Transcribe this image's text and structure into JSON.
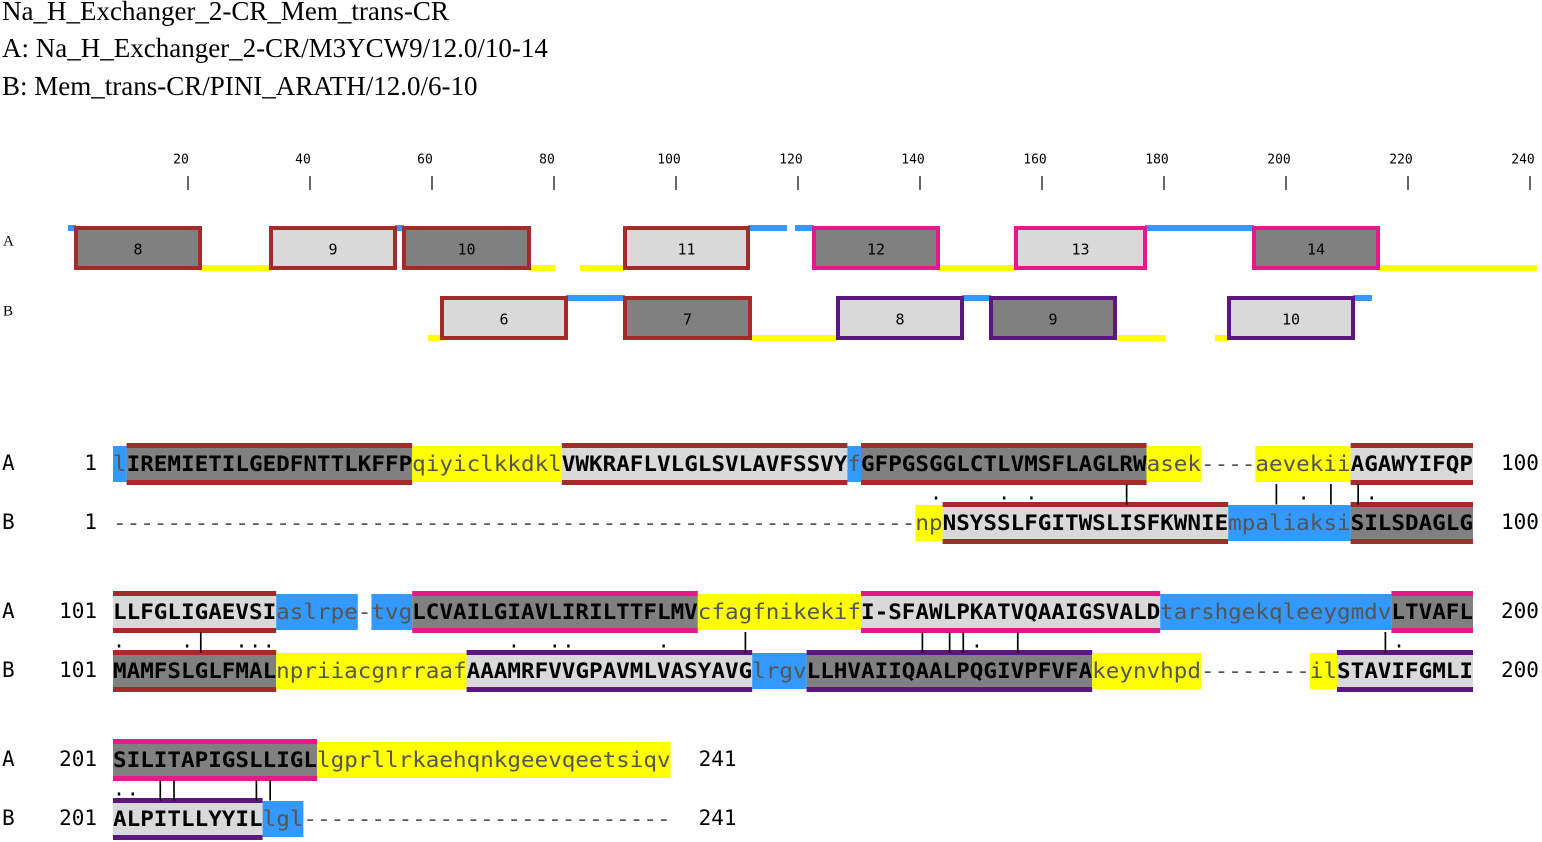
{
  "header": {
    "title": "Na_H_Exchanger_2-CR_Mem_trans-CR",
    "a": "A: Na_H_Exchanger_2-CR/M3YCW9/12.0/10-14",
    "b": "B: Mem_trans-CR/PINI_ARATH/12.0/6-10"
  },
  "ruler": {
    "ticks": [
      20,
      40,
      60,
      80,
      100,
      120,
      140,
      160,
      180,
      200,
      220,
      240
    ]
  },
  "tracks": [
    {
      "label": "A",
      "boxes": [
        {
          "label": "8",
          "fill": "#808080",
          "border": "#a52a2a"
        },
        {
          "label": "9",
          "fill": "#d9d9d9",
          "border": "#a52a2a"
        },
        {
          "label": "10",
          "fill": "#808080",
          "border": "#a52a2a"
        },
        {
          "label": "11",
          "fill": "#d9d9d9",
          "border": "#a52a2a"
        },
        {
          "label": "12",
          "fill": "#808080",
          "border": "#e6198a"
        },
        {
          "label": "13",
          "fill": "#d9d9d9",
          "border": "#e6198a"
        },
        {
          "label": "14",
          "fill": "#808080",
          "border": "#e6198a"
        }
      ]
    },
    {
      "label": "B",
      "boxes": [
        {
          "label": "6",
          "fill": "#d9d9d9",
          "border": "#a52a2a"
        },
        {
          "label": "7",
          "fill": "#808080",
          "border": "#a52a2a"
        },
        {
          "label": "8",
          "fill": "#d9d9d9",
          "border": "#5b1680"
        },
        {
          "label": "9",
          "fill": "#808080",
          "border": "#5b1680"
        },
        {
          "label": "10",
          "fill": "#d9d9d9",
          "border": "#5b1680"
        }
      ]
    }
  ],
  "alignment": [
    {
      "rows": [
        {
          "label": "A",
          "start": 1,
          "end": 100,
          "segments": [
            {
              "text": "l",
              "bg": "#3399ff"
            },
            {
              "text": "IREMIETILGEDFNTTLKFFP",
              "bg": "#808080",
              "border": "#a52a2a"
            },
            {
              "text": "qiyiclkkdkl",
              "bg": "#ffff00"
            },
            {
              "text": "VWKRAFLVLGLSVLAVFSSVY",
              "bg": "#d9d9d9",
              "border": "#a52a2a"
            },
            {
              "text": "f",
              "bg": "#3399ff"
            },
            {
              "text": "GFPGSGGLCTLVMSFLAGLRW",
              "bg": "#808080",
              "border": "#a52a2a"
            },
            {
              "text": "asek",
              "bg": "#ffff00"
            },
            {
              "text": "----"
            },
            {
              "text": "aevekii",
              "bg": "#ffff00"
            },
            {
              "text": "AGAWYIFQP",
              "bg": "#d9d9d9",
              "border": "#a52a2a"
            }
          ]
        },
        {
          "label": "B",
          "start": 1,
          "end": 100,
          "segments": [
            {
              "text": "-----------------------------------------------------------"
            },
            {
              "text": "np",
              "bg": "#ffff00"
            },
            {
              "text": "NSYSSLFGITWSLISFKWNIE",
              "bg": "#d9d9d9",
              "border": "#a52a2a"
            },
            {
              "text": "mpaliaksi",
              "bg": "#3399ff"
            },
            {
              "text": "SILSDAGLG",
              "bg": "#808080",
              "border": "#a52a2a"
            }
          ]
        }
      ],
      "match": "                                                            .    . .      |          | . | |."
    },
    {
      "rows": [
        {
          "label": "A",
          "start": 101,
          "end": 200,
          "segments": [
            {
              "text": "LLFGLIGAEVSI",
              "bg": "#d9d9d9",
              "border": "#a52a2a"
            },
            {
              "text": "aslrpe",
              "bg": "#3399ff"
            },
            {
              "text": "-"
            },
            {
              "text": "tvg",
              "bg": "#3399ff"
            },
            {
              "text": "LCVAILGIAVLIRILTTFLMV",
              "bg": "#808080",
              "border": "#e6198a"
            },
            {
              "text": "cfagfnikekif",
              "bg": "#ffff00"
            },
            {
              "text": "I-SFAWLPKATVQAAIGSVALD",
              "bg": "#d9d9d9",
              "border": "#e6198a"
            },
            {
              "text": "tarshgekqleeygmdv",
              "bg": "#3399ff"
            },
            {
              "text": "LTVAFL",
              "bg": "#808080",
              "border": "#e6198a"
            }
          ]
        },
        {
          "label": "B",
          "start": 101,
          "end": 200,
          "segments": [
            {
              "text": "MAMFSLGLFMAL",
              "bg": "#808080",
              "border": "#a52a2a"
            },
            {
              "text": "npriiacgnrraaf",
              "bg": "#ffff00"
            },
            {
              "text": "AAAMRFVVGPAVMLVASYAVG",
              "bg": "#d9d9d9",
              "border": "#5b1680"
            },
            {
              "text": "lrgv",
              "bg": "#3399ff"
            },
            {
              "text": "LLHVAIIQAALPQGIVPFVFA",
              "bg": "#808080",
              "border": "#5b1680"
            },
            {
              "text": "keynvhpd",
              "bg": "#ffff00"
            },
            {
              "text": "--------"
            },
            {
              "text": "il",
              "bg": "#ffff00"
            },
            {
              "text": "STAVIFGMLI",
              "bg": "#d9d9d9",
              "border": "#5b1680"
            }
          ]
        }
      ],
      "match": ".    .|  ...                 .  ..      .     |            | ||.  |                          |."
    },
    {
      "rows": [
        {
          "label": "A",
          "start": 201,
          "end": 241,
          "segments": [
            {
              "text": "SILITAPIGSLLIGL",
              "bg": "#808080",
              "border": "#e6198a"
            },
            {
              "text": "lgprllrkaehqnkgeevqeetsiqv",
              "bg": "#ffff00"
            }
          ]
        },
        {
          "label": "B",
          "start": 201,
          "end": 241,
          "segments": [
            {
              "text": "ALPITLLYYIL",
              "bg": "#d9d9d9",
              "border": "#5b1680"
            },
            {
              "text": "lgl",
              "bg": "#3399ff"
            },
            {
              "text": "---------------------------"
            }
          ]
        }
      ],
      "match": ".. ||     ||"
    }
  ]
}
